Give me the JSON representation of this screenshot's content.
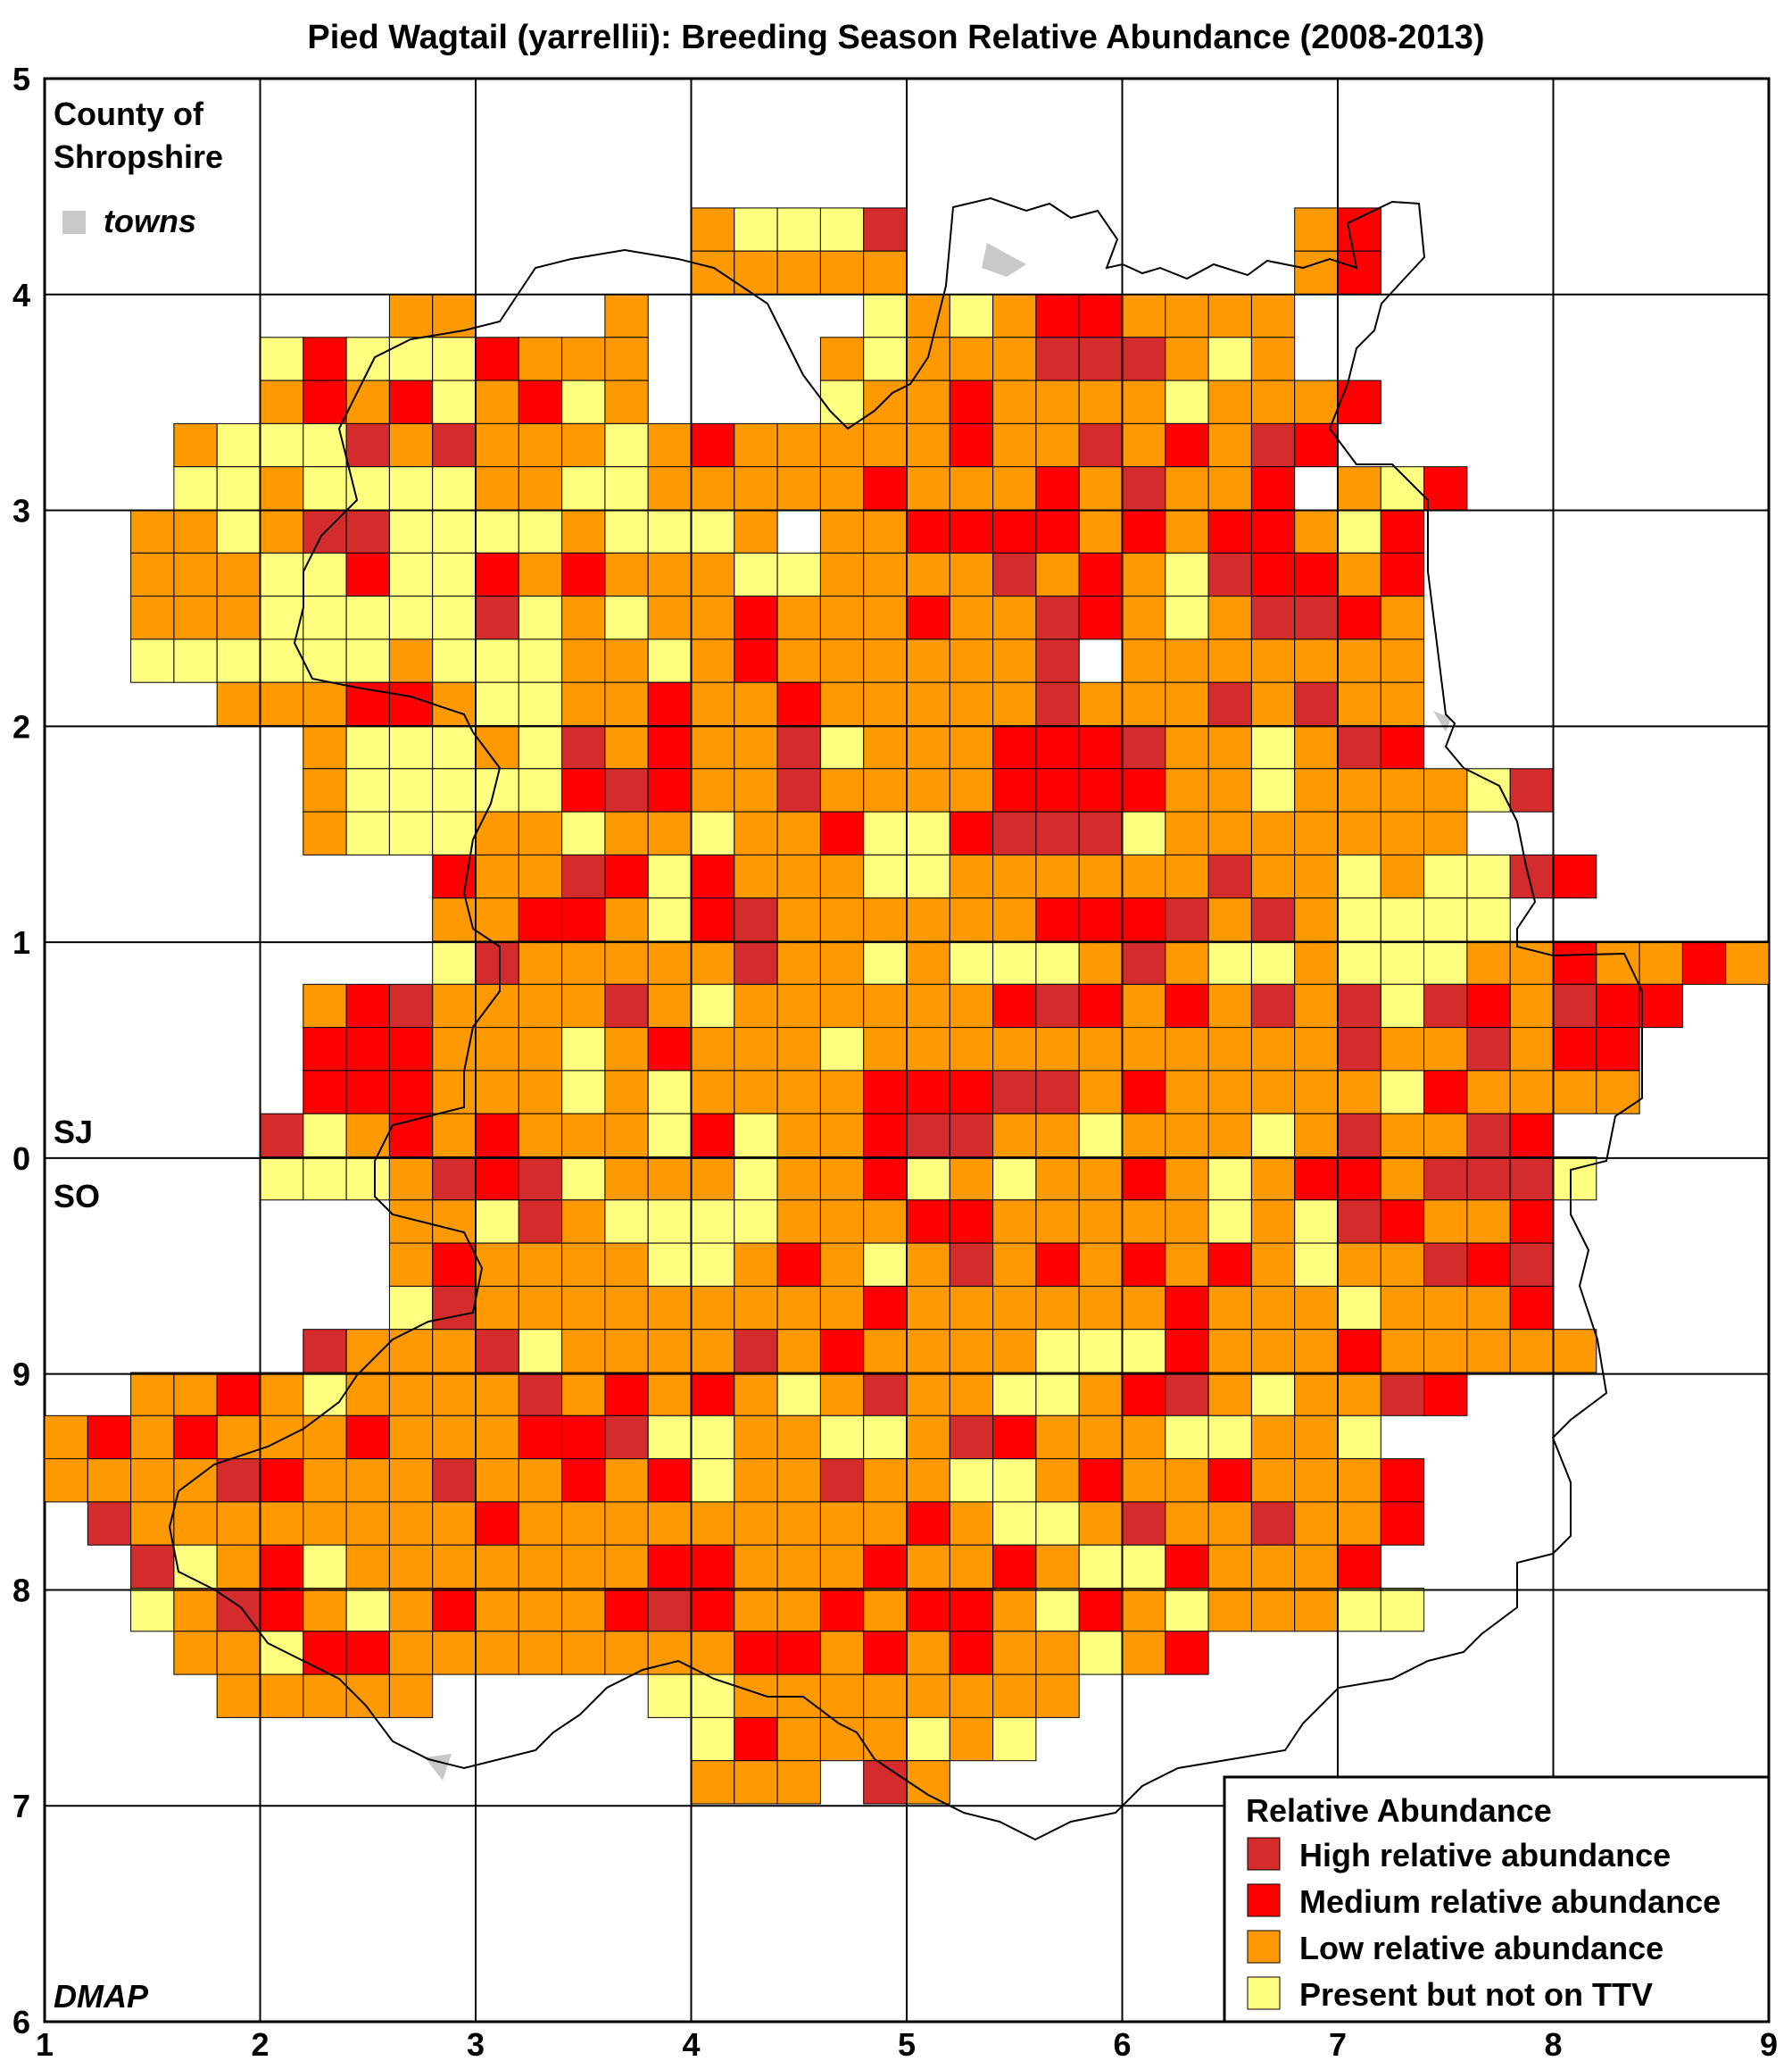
{
  "title": "Pied Wagtail (yarrellii): Breeding Season Relative Abundance (2008-2013)",
  "x_tick_labels": [
    "1",
    "2",
    "3",
    "4",
    "5",
    "6",
    "7",
    "8",
    "9"
  ],
  "y_tick_labels": [
    "5",
    "4",
    "3",
    "2",
    "1",
    "0",
    "9",
    "8",
    "7",
    "6"
  ],
  "county_label_line1": "County of",
  "county_label_line2": "Shropshire",
  "towns_label": "towns",
  "grid_ref_north": "SJ",
  "grid_ref_south": "SO",
  "source_label": "DMAP",
  "colors": {
    "high": "#d42c2c",
    "medium": "#ff0000",
    "low": "#ff9900",
    "present": "#ffff80",
    "towns": "#c8c8c8",
    "grid": "#000000"
  },
  "legend": {
    "title": "Relative Abundance",
    "items": [
      {
        "key": "high",
        "label": "High relative abundance"
      },
      {
        "key": "medium",
        "label": "Medium relative abundance"
      },
      {
        "key": "low",
        "label": "Low relative abundance"
      },
      {
        "key": "present",
        "label": "Present but not on TTV"
      }
    ]
  },
  "chart_data": {
    "type": "heatmap",
    "title": "Pied Wagtail (yarrellii): Breeding Season Relative Abundance (2008-2013)",
    "category_codes": {
      "H": "High relative abundance",
      "M": "Medium relative abundance",
      "L": "Low relative abundance",
      "P": "Present but not on TTV",
      ".": "no record"
    },
    "tetrad_rows": [
      "...................................",
      "...................................",
      "...................................",
      "...............LPPPH.........LM....",
      "...............LLLLL.........LM....",
      "........LL...L.....PLPLMMLLLL......",
      ".....PMPPPMLLL....LPLLLHHHLPL......",
      ".....LMLMPLMPL....PLLMLLLLPLLLM.....",
      "...LPPPHLHLLLPLMLLLLLMLLHLMLHM.....",
      "...PPLPPPPLLPPLLLLLMLLLMLHLLM.LPM...",
      "..LLPLHHPPPPLPPPL.LLMMMMLMLMMLPM....",
      "..LLLPPMPPMLMLLLPPLLLLHLMLPHMMLM....",
      "..LLLPPPPPHPLPLLMLLLMLLHMLPLHHML....",
      "..PPPPPPLPPPLLPLMLLLLLLH.LLLLLLL....",
      "....LLLMMLPPLLMLLMLLLLLHLLLHLHLL....",
      "......LPPPLPHLMLLHPLLLMMMHLLPLHM....",
      "......LPPPPPMHMLLHLLLLMMMMLLPLLLLPH.",
      "......LPPPLLPLLPLLMPPMHHHPLLLLLLL...",
      ".........MLLHMPMLLLPPLLLLLLHLLPLPPHM",
      ".........LLMMLPMHLLLLLLMMMHLHLPPPP..",
      ".........PHLLLLLHLLPLPPPLHLPPLPPPLLMLLMLL..",
      "......LMHLLLLHLPLLLLLLMHMLMLHLHPHMLHMM",
      "......MMMLLLPLMLLLPLLLLLLLLLLLHLLHLMM.",
      "......MMMLLLPLPLLLLMMMHHLMLLLLLPMLLLL.",
      ".....HPLMLMLLLPMPLLMHHLLPLLLPLHLLHM...",
      ".....PPPLHMHPLLLPLLMPLPLLMLPLMMLHHHP..",
      "........LLPHLPPPPLLLMMLLLLLPLPHMLLM...",
      "........LMLLLLPPLMLPLHLMLMLMLPLLHMH...",
      "........PHLLLLLLLLLMLLLLLLMLLLPLLLM...",
      "......HLLLHPLLLLHLMLLLLPPPMLLLMLLLLL..",
      "..LLMLPLLLLHLMLMLPLHLLPPLMHLPLLHM.....",
      "LMLMLLLMLLLMMHPPLLPPLHMLLLPPLLP.......",
      "LLLLHMLLLHLLMLMPLLHLLPPLMLLMLLLM......",
      ".HLLLLLLLLMLLLLLLLLLMLPPLHLLHLLM......",
      "..HPLMPLLLLLLLMMLLLMLLMLPPMLLLM.......",
      "..PLHMLPLMLLLMHMLLMLMMLPMLPLLLPP.......",
      "...LLPMMLLLLLLLLMMLMLMLLPLM...........",
      "....LLLLL.....PPLLLLLLLL..............",
      "...............PMLLLPLP................",
      "...............LLL.HL.................."
    ]
  }
}
